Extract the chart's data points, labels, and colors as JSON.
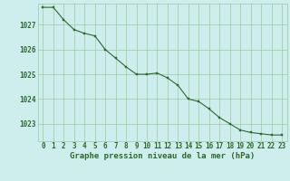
{
  "x": [
    0,
    1,
    2,
    3,
    4,
    5,
    6,
    7,
    8,
    9,
    10,
    11,
    12,
    13,
    14,
    15,
    16,
    17,
    18,
    19,
    20,
    21,
    22,
    23
  ],
  "y": [
    1027.7,
    1027.7,
    1027.2,
    1026.8,
    1026.65,
    1026.55,
    1026.0,
    1025.65,
    1025.3,
    1025.0,
    1025.0,
    1025.05,
    1024.85,
    1024.55,
    1024.0,
    1023.9,
    1023.6,
    1023.25,
    1023.0,
    1022.75,
    1022.65,
    1022.6,
    1022.55,
    1022.55
  ],
  "line_color": "#2d6a2d",
  "marker_color": "#2d6a2d",
  "bg_color": "#ceeeed",
  "grid_color": "#9ec99e",
  "xlabel": "Graphe pression niveau de la mer (hPa)",
  "xlabel_color": "#2d6a2d",
  "tick_color": "#2d6a2d",
  "ylim": [
    1022.3,
    1027.85
  ],
  "yticks": [
    1023,
    1024,
    1025,
    1026,
    1027
  ],
  "xtick_labels": [
    "0",
    "1",
    "2",
    "3",
    "4",
    "5",
    "6",
    "7",
    "8",
    "9",
    "10",
    "11",
    "12",
    "13",
    "14",
    "15",
    "16",
    "17",
    "18",
    "19",
    "20",
    "21",
    "22",
    "23"
  ],
  "tick_fontsize": 5.5,
  "xlabel_fontsize": 6.5
}
